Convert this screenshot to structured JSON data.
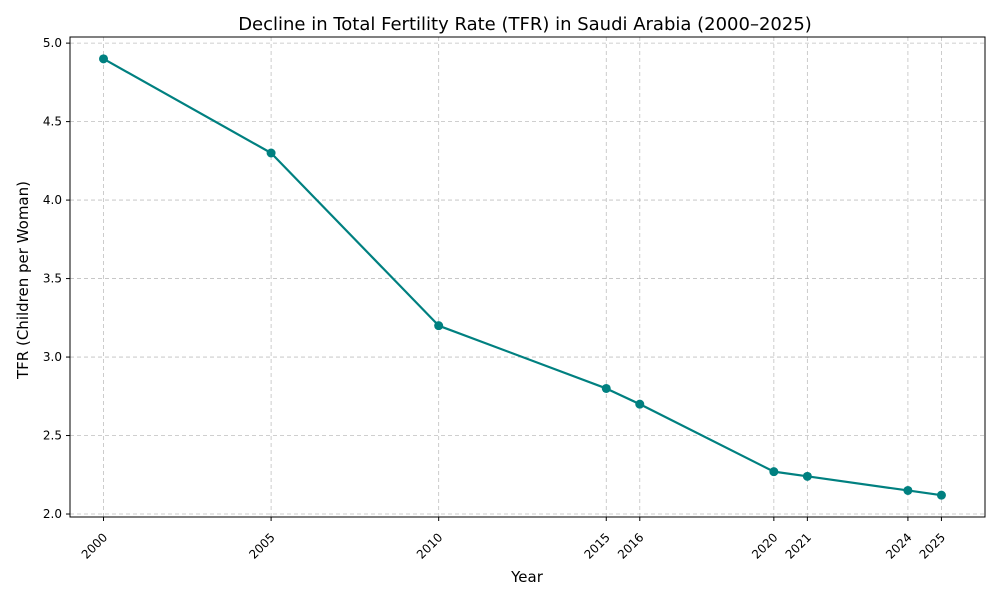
{
  "chart_data": {
    "type": "line",
    "title": "Decline in Total Fertility Rate (TFR) in Saudi Arabia (2000–2025)",
    "xlabel": "Year",
    "ylabel": "TFR (Children per Woman)",
    "x": [
      2000,
      2005,
      2010,
      2015,
      2016,
      2020,
      2021,
      2024,
      2025
    ],
    "series": [
      {
        "name": "TFR",
        "values": [
          4.9,
          4.3,
          3.2,
          2.8,
          2.7,
          2.27,
          2.24,
          2.15,
          2.12
        ],
        "color": "#008080"
      }
    ],
    "xlim": [
      1999.0,
      2026.3
    ],
    "ylim": [
      1.981,
      5.039
    ],
    "yticks": [
      "2.0",
      "2.5",
      "3.0",
      "3.5",
      "4.0",
      "4.5",
      "5.0"
    ],
    "xticks": [
      "2000",
      "2005",
      "2010",
      "2015",
      "2016",
      "2020",
      "2021",
      "2024",
      "2025"
    ],
    "grid": true
  }
}
